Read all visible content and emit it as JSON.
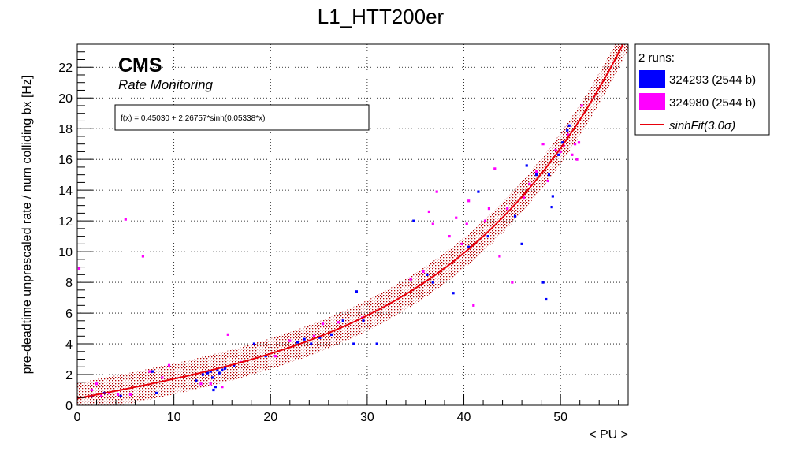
{
  "chart_data": {
    "type": "scatter",
    "title": "L1_HTT200er",
    "xlabel": "< PU >",
    "ylabel": "pre-deadtime unprescaled rate / num colliding bx [Hz]",
    "xlim": [
      0,
      57
    ],
    "ylim": [
      0,
      23.5
    ],
    "x_ticks": [
      0,
      10,
      20,
      30,
      40,
      50
    ],
    "y_ticks": [
      0,
      2,
      4,
      6,
      8,
      10,
      12,
      14,
      16,
      18,
      20,
      22
    ],
    "grid": true,
    "legend_position": "outside-right",
    "cms_label": "CMS",
    "cms_sublabel": "Rate Monitoring",
    "fit_box_text": "f(x) = 0.45030 + 2.26757*sinh(0.05338*x)",
    "legend_header": "2 runs:",
    "fit": {
      "name": "sinhFit(3.0σ)",
      "formula": "f(x) = 0.45030 + 2.26757*sinh(0.05338*x)",
      "a": 0.4503,
      "b": 2.26757,
      "c": 0.05338,
      "band_sigma_rate": 1.0,
      "x_max": 57,
      "color": "#e8000b"
    },
    "band_color": "#b00000",
    "series": [
      {
        "name": "324293 (2544 b)",
        "color": "#0000ff",
        "points": [
          [
            1.5,
            0.6
          ],
          [
            2.8,
            0.8
          ],
          [
            4.5,
            0.6
          ],
          [
            7.8,
            2.2
          ],
          [
            8.2,
            0.8
          ],
          [
            12.3,
            1.6
          ],
          [
            13.0,
            2.0
          ],
          [
            13.5,
            2.1
          ],
          [
            13.8,
            2.2
          ],
          [
            14.0,
            1.8
          ],
          [
            14.1,
            1.0
          ],
          [
            14.3,
            1.2
          ],
          [
            14.5,
            2.3
          ],
          [
            14.7,
            2.1
          ],
          [
            15.0,
            2.3
          ],
          [
            15.3,
            2.4
          ],
          [
            16.2,
            2.6
          ],
          [
            18.3,
            4.0
          ],
          [
            19.5,
            3.2
          ],
          [
            22.8,
            4.1
          ],
          [
            23.5,
            4.3
          ],
          [
            24.2,
            4.0
          ],
          [
            25.1,
            4.4
          ],
          [
            26.3,
            4.6
          ],
          [
            27.5,
            5.5
          ],
          [
            28.6,
            4.0
          ],
          [
            28.9,
            7.4
          ],
          [
            29.6,
            5.5
          ],
          [
            31.0,
            4.0
          ],
          [
            34.8,
            12.0
          ],
          [
            36.2,
            8.5
          ],
          [
            36.8,
            8.0
          ],
          [
            38.9,
            7.3
          ],
          [
            40.5,
            10.3
          ],
          [
            41.5,
            13.9
          ],
          [
            42.5,
            11.0
          ],
          [
            45.3,
            12.3
          ],
          [
            46.0,
            10.5
          ],
          [
            46.5,
            15.6
          ],
          [
            47.5,
            15.0
          ],
          [
            48.2,
            8.0
          ],
          [
            48.5,
            6.9
          ],
          [
            48.8,
            15.0
          ],
          [
            49.1,
            12.9
          ],
          [
            49.2,
            13.6
          ],
          [
            49.8,
            16.3
          ],
          [
            50.2,
            17.1
          ],
          [
            50.7,
            17.9
          ],
          [
            50.9,
            18.2
          ]
        ]
      },
      {
        "name": "324980 (2544 b)",
        "color": "#ff00ff",
        "points": [
          [
            0.2,
            8.9
          ],
          [
            1.5,
            1.0
          ],
          [
            2.0,
            1.4
          ],
          [
            2.5,
            0.6
          ],
          [
            3.3,
            0.8
          ],
          [
            4.2,
            0.7
          ],
          [
            5.0,
            12.1
          ],
          [
            5.5,
            0.7
          ],
          [
            6.8,
            9.7
          ],
          [
            7.5,
            2.2
          ],
          [
            8.8,
            1.8
          ],
          [
            9.5,
            2.6
          ],
          [
            12.8,
            1.4
          ],
          [
            13.8,
            1.4
          ],
          [
            15.0,
            1.2
          ],
          [
            15.6,
            4.6
          ],
          [
            17.0,
            2.8
          ],
          [
            20.5,
            3.2
          ],
          [
            22.0,
            4.2
          ],
          [
            24.5,
            4.5
          ],
          [
            25.4,
            5.3
          ],
          [
            27.0,
            5.4
          ],
          [
            29.5,
            5.7
          ],
          [
            34.5,
            8.2
          ],
          [
            35.8,
            8.7
          ],
          [
            36.4,
            12.6
          ],
          [
            36.8,
            11.8
          ],
          [
            37.2,
            13.9
          ],
          [
            38.5,
            11.0
          ],
          [
            39.2,
            12.2
          ],
          [
            39.8,
            10.5
          ],
          [
            40.3,
            11.8
          ],
          [
            40.5,
            13.3
          ],
          [
            41.0,
            6.5
          ],
          [
            42.2,
            12.0
          ],
          [
            42.6,
            12.8
          ],
          [
            43.2,
            15.4
          ],
          [
            43.7,
            9.7
          ],
          [
            44.5,
            12.8
          ],
          [
            45.0,
            8.0
          ],
          [
            46.2,
            13.5
          ],
          [
            46.8,
            14.4
          ],
          [
            47.5,
            15.2
          ],
          [
            48.2,
            17.0
          ],
          [
            48.7,
            14.6
          ],
          [
            49.5,
            16.6
          ],
          [
            50.0,
            16.5
          ],
          [
            50.3,
            16.9
          ],
          [
            50.8,
            17.6
          ],
          [
            51.2,
            16.3
          ],
          [
            51.5,
            17.0
          ],
          [
            51.7,
            16.0
          ],
          [
            51.9,
            17.1
          ],
          [
            52.2,
            19.5
          ]
        ]
      }
    ]
  }
}
